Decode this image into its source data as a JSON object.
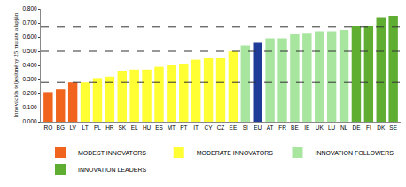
{
  "chart_data": {
    "type": "bar",
    "y_label": "Innovációs teljesítmény 25 mutató alapján",
    "categories": [
      "RO",
      "BG",
      "LV",
      "LT",
      "PL",
      "HR",
      "SK",
      "EL",
      "HU",
      "ES",
      "MT",
      "PT",
      "IT",
      "CY",
      "CZ",
      "EE",
      "SI",
      "EU",
      "AT",
      "FR",
      "BE",
      "IE",
      "UK",
      "LU",
      "NL",
      "DE",
      "FI",
      "DK",
      "SE"
    ],
    "values": [
      0.21,
      0.23,
      0.28,
      0.28,
      0.31,
      0.32,
      0.36,
      0.37,
      0.37,
      0.39,
      0.4,
      0.41,
      0.44,
      0.45,
      0.45,
      0.5,
      0.54,
      0.56,
      0.59,
      0.59,
      0.62,
      0.63,
      0.64,
      0.64,
      0.65,
      0.68,
      0.68,
      0.74,
      0.75
    ],
    "colors": [
      "#f0641e",
      "#f0641e",
      "#f0641e",
      "#ffff33",
      "#ffff33",
      "#ffff33",
      "#ffff33",
      "#ffff33",
      "#ffff33",
      "#ffff33",
      "#ffff33",
      "#ffff33",
      "#ffff33",
      "#ffff33",
      "#ffff33",
      "#ffff33",
      "#a8e6a0",
      "#1f3c99",
      "#a8e6a0",
      "#a8e6a0",
      "#a8e6a0",
      "#a8e6a0",
      "#a8e6a0",
      "#a8e6a0",
      "#a8e6a0",
      "#5fae32",
      "#5fae32",
      "#5fae32",
      "#5fae32"
    ],
    "legend_items": [
      {
        "name": "MODEST INNOVATORS",
        "color": "#f0641e"
      },
      {
        "name": "MODERATE INNOVATORS",
        "color": "#ffff33"
      },
      {
        "name": "INNOVATION FOLLOWERS",
        "color": "#a8e6a0"
      },
      {
        "name": "INNOVATION LEADERS",
        "color": "#5fae32"
      }
    ],
    "threshold_lines": [
      0.28,
      0.5,
      0.67
    ],
    "ylim": [
      0,
      0.8
    ],
    "yticks": [
      {
        "value": 0,
        "label": "0.000"
      },
      {
        "value": 0.1,
        "label": "0.100"
      },
      {
        "value": 0.2,
        "label": "0.200"
      },
      {
        "value": 0.3,
        "label": "0.300"
      },
      {
        "value": 0.4,
        "label": "0.400"
      },
      {
        "value": 0.5,
        "label": "0.500"
      },
      {
        "value": 0.6,
        "label": "0.600"
      },
      {
        "value": 0.7,
        "label": "0.700"
      },
      {
        "value": 0.8,
        "label": "0.800"
      }
    ],
    "grid": false,
    "legend": "bottom"
  }
}
